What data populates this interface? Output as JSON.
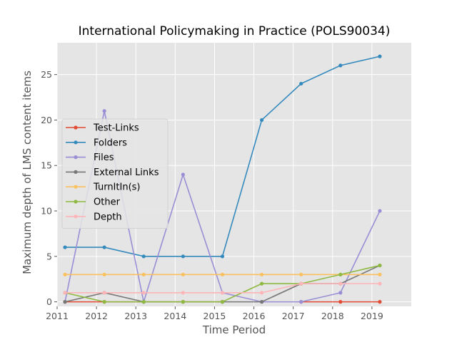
{
  "chart_data": {
    "type": "line",
    "title": "International Policymaking in Practice (POLS90034)",
    "xlabel": "Time Period",
    "ylabel": "Maximum depth of LMS content items",
    "xlim": [
      2011,
      2020
    ],
    "ylim": [
      -0.5,
      28.5
    ],
    "xticks": [
      2011,
      2012,
      2013,
      2014,
      2015,
      2016,
      2017,
      2018,
      2019
    ],
    "yticks": [
      0,
      5,
      10,
      15,
      20,
      25
    ],
    "grid": true,
    "legend_position": "center-left",
    "x": [
      2011.2,
      2012.2,
      2013.2,
      2014.2,
      2015.2,
      2016.2,
      2017.2,
      2018.2,
      2019.2
    ],
    "series": [
      {
        "name": "Test-Links",
        "color": "#E24A33",
        "values": [
          0,
          0,
          0,
          0,
          0,
          null,
          0,
          0,
          0
        ]
      },
      {
        "name": "Folders",
        "color": "#348ABD",
        "values": [
          6,
          6,
          5,
          5,
          5,
          20,
          24,
          26,
          27
        ]
      },
      {
        "name": "Files",
        "color": "#988ED5",
        "values": [
          0,
          21,
          0,
          14,
          1,
          0,
          0,
          1,
          10
        ]
      },
      {
        "name": "External Links",
        "color": "#777777",
        "values": [
          0,
          1,
          0,
          0,
          0,
          0,
          2,
          2,
          4
        ]
      },
      {
        "name": "TurnItIn(s)",
        "color": "#FBC15E",
        "values": [
          3,
          3,
          3,
          3,
          3,
          3,
          3,
          3,
          3
        ]
      },
      {
        "name": "Other",
        "color": "#8EBA42",
        "values": [
          1,
          0,
          0,
          0,
          0,
          2,
          2,
          3,
          4
        ]
      },
      {
        "name": "Depth",
        "color": "#FFB5B8",
        "values": [
          1,
          1,
          1,
          1,
          1,
          1,
          2,
          2,
          2
        ]
      }
    ]
  }
}
